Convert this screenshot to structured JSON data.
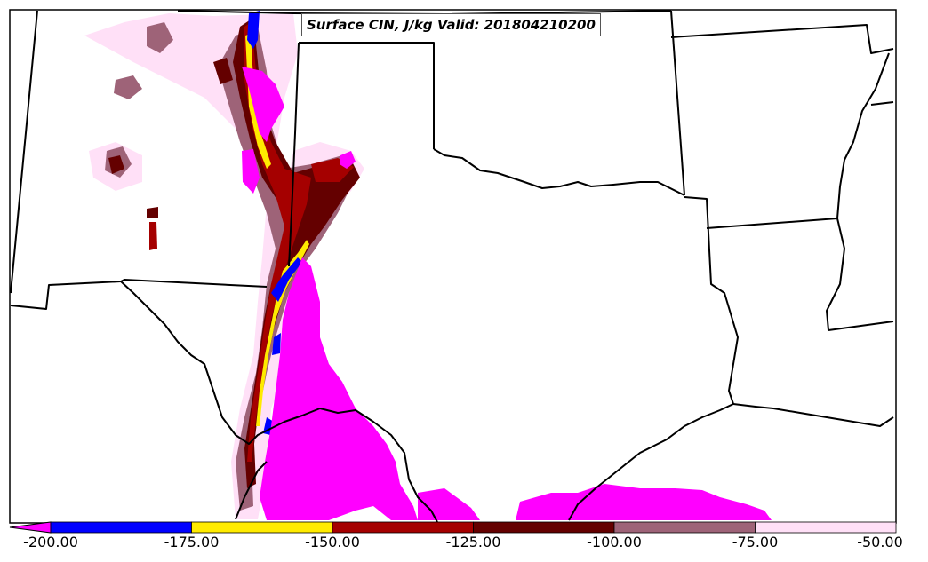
{
  "map": {
    "title": "Surface CIN, J/kg Valid: 201804210200",
    "fields": {
      "strong_cin": "#ff00ff",
      "blue_band": "#0000ff",
      "yellow_band": "#ffeb00",
      "red_band": "#a50000",
      "dark_red_band": "#640000",
      "mauve_band": "#9e6378",
      "light_pink_band": "#ffe0f7"
    }
  },
  "colorbar": {
    "labels": [
      "-200.00",
      "-175.00",
      "-150.00",
      "-125.00",
      "-100.00",
      "-75.00",
      "-50.00"
    ],
    "colors": [
      "#0000ff",
      "#ffeb00",
      "#a50000",
      "#640000",
      "#9e6378",
      "#ffe0f7"
    ],
    "extend_color": "#ff00ff"
  }
}
